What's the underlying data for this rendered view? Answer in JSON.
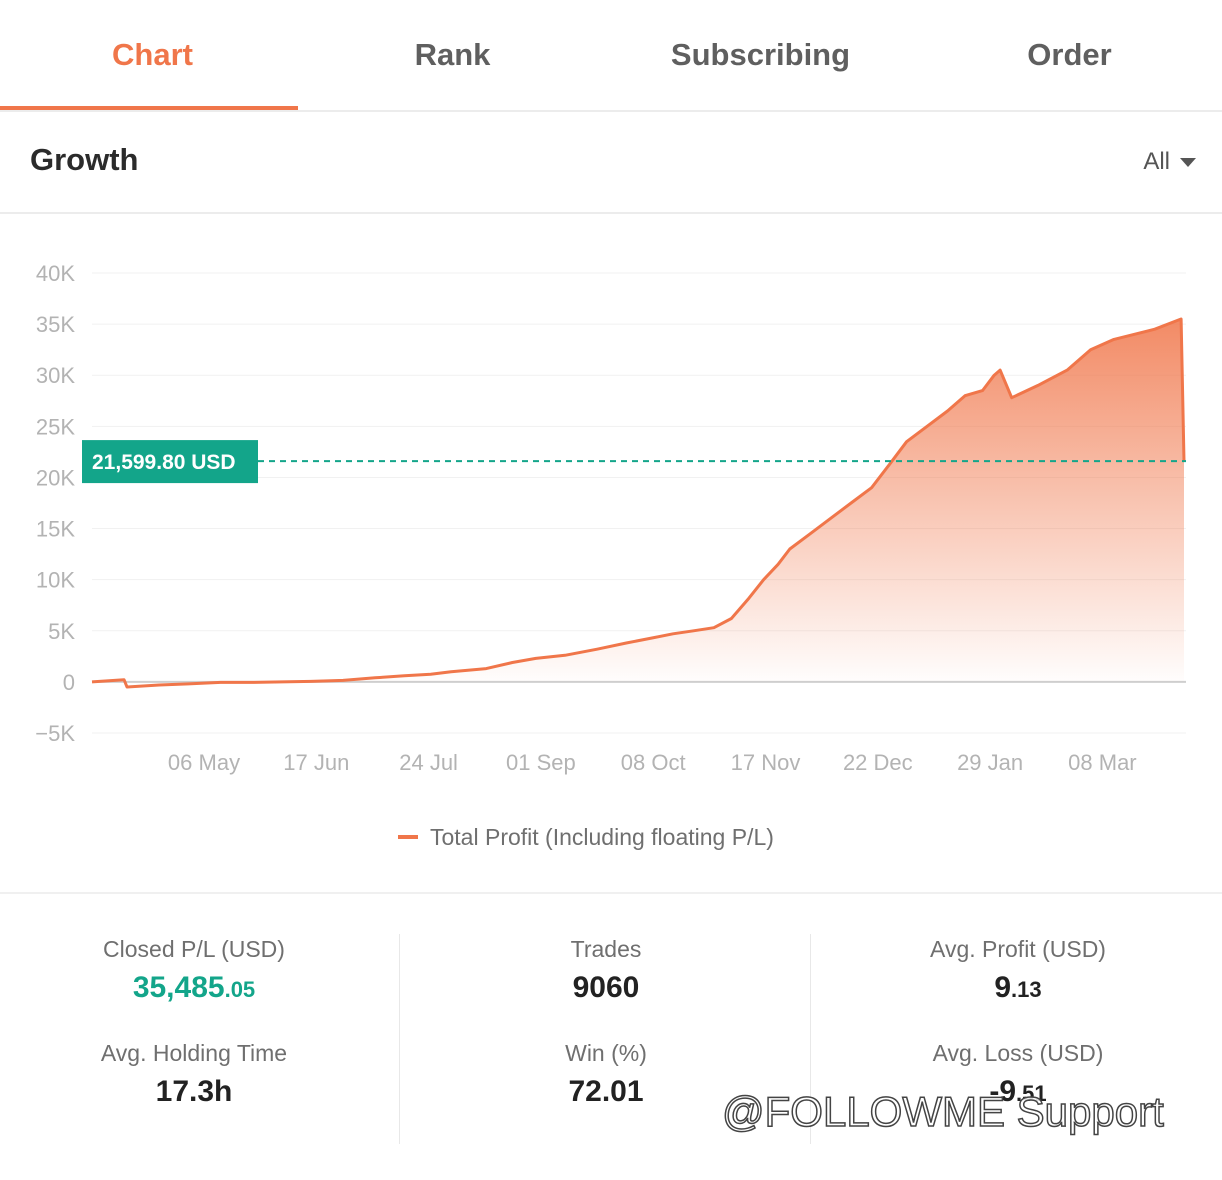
{
  "tabs": [
    {
      "label": "Chart",
      "active": true
    },
    {
      "label": "Rank",
      "active": false
    },
    {
      "label": "Subscribing",
      "active": false
    },
    {
      "label": "Order",
      "active": false
    }
  ],
  "section": {
    "title": "Growth",
    "range_label": "All"
  },
  "colors": {
    "accent": "#f0764a",
    "marker": "#13a58a",
    "grid": "#f1f1f1",
    "axis_text": "#b3b3b3"
  },
  "chart_data": {
    "type": "area",
    "x_tick_labels": [
      "06 May",
      "17 Jun",
      "24 Jul",
      "01 Sep",
      "08 Oct",
      "17 Nov",
      "22 Dec",
      "29 Jan",
      "08 Mar"
    ],
    "y_tick_labels": [
      "40K",
      "35K",
      "30K",
      "25K",
      "20K",
      "15K",
      "10K",
      "5K",
      "0",
      "−5K"
    ],
    "ylim": [
      -5000,
      40000
    ],
    "grid": true,
    "legend_position": "bottom-center",
    "series": [
      {
        "name": "Total Profit (Including floating P/L)",
        "x": [
          "2020-03-23",
          "2020-04-03",
          "2020-04-04",
          "2020-04-15",
          "2020-04-25",
          "2020-05-06",
          "2020-05-16",
          "2020-05-27",
          "2020-06-06",
          "2020-06-17",
          "2020-06-28",
          "2020-07-08",
          "2020-07-17",
          "2020-07-24",
          "2020-08-05",
          "2020-08-14",
          "2020-08-22",
          "2020-09-01",
          "2020-09-12",
          "2020-09-22",
          "2020-10-01",
          "2020-10-08",
          "2020-10-15",
          "2020-10-22",
          "2020-10-28",
          "2020-11-03",
          "2020-11-08",
          "2020-11-13",
          "2020-11-17",
          "2020-11-24",
          "2020-12-01",
          "2020-12-08",
          "2020-12-15",
          "2020-12-22",
          "2020-12-27",
          "2021-01-03",
          "2021-01-10",
          "2021-01-16",
          "2021-01-22",
          "2021-01-26",
          "2021-01-28",
          "2021-02-01",
          "2021-02-10",
          "2021-02-20",
          "2021-02-28",
          "2021-03-08",
          "2021-03-15",
          "2021-03-22",
          "2021-03-31",
          "2021-04-01"
        ],
        "y": [
          0,
          200,
          -500,
          -300,
          -200,
          -50,
          -50,
          0,
          50,
          150,
          400,
          600,
          750,
          1000,
          1300,
          1900,
          2300,
          2600,
          3200,
          3800,
          4300,
          4700,
          5000,
          5300,
          6200,
          8200,
          10000,
          11500,
          13000,
          14500,
          16000,
          17500,
          19000,
          21600,
          23500,
          25000,
          26500,
          28000,
          28500,
          30000,
          30500,
          27800,
          29000,
          30500,
          32500,
          33500,
          34000,
          34500,
          35500,
          21600
        ]
      }
    ],
    "marker": {
      "value": 21599.8,
      "label": "21,599.80 USD"
    }
  },
  "stats": {
    "closed_pl": {
      "label": "Closed P/L (USD)",
      "int": "35,485",
      "dec": ".05"
    },
    "trades": {
      "label": "Trades",
      "value": "9060"
    },
    "avg_profit": {
      "label": "Avg. Profit (USD)",
      "int": "9",
      "dec": ".13"
    },
    "avg_holding": {
      "label": "Avg. Holding Time",
      "value": "17.3h"
    },
    "win": {
      "label": "Win (%)",
      "value": "72.01"
    },
    "avg_loss": {
      "label": "Avg. Loss (USD)",
      "int": "-9",
      "dec": ".51"
    }
  },
  "watermark": "@FOLLOWME Support"
}
